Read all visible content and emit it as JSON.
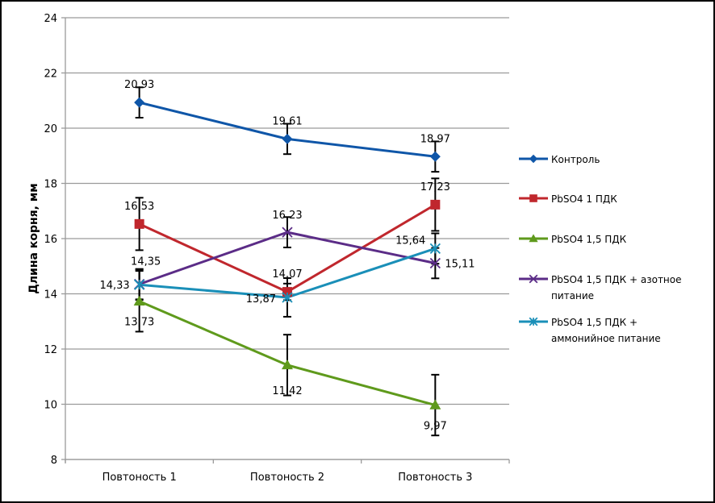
{
  "chart_data": {
    "type": "line",
    "title": "",
    "xlabel": "",
    "ylabel": "Длина корня, мм",
    "ylim": [
      8,
      24
    ],
    "yticks": [
      8,
      10,
      12,
      14,
      16,
      18,
      20,
      22,
      24
    ],
    "ytick_labels": [
      "8",
      "10",
      "12",
      "14",
      "16",
      "18",
      "20",
      "22",
      "24"
    ],
    "grid": true,
    "legend_position": "right",
    "categories": [
      "Повтоность 1",
      "Повтоность 2",
      "Повтоность 3"
    ],
    "series": [
      {
        "name": "Контроль",
        "color": "#0f56a8",
        "marker": "diamond",
        "values": [
          20.93,
          19.61,
          18.97
        ],
        "labels": [
          "20,93",
          "19,61",
          "18,97"
        ],
        "error": [
          0.55,
          0.55,
          0.55
        ]
      },
      {
        "name": "PbSO4 1 ПДК",
        "color": "#c0272d",
        "marker": "square",
        "values": [
          16.53,
          14.07,
          17.23
        ],
        "labels": [
          "16,53",
          "14,07",
          "17,23"
        ],
        "error": [
          0.95,
          0.3,
          0.95
        ]
      },
      {
        "name": "PbSO4 1,5 ПДК",
        "color": "#5f9a1c",
        "marker": "triangle",
        "values": [
          13.73,
          11.42,
          9.97
        ],
        "labels": [
          "13,73",
          "11,42",
          "9,97"
        ],
        "error": [
          1.1,
          1.1,
          1.1
        ]
      },
      {
        "name": "PbSO4 1,5 ПДК + азотное питание",
        "legend_lines": [
          "PbSO4 1,5 ПДК + азотное",
          "питание"
        ],
        "color": "#5b2c87",
        "marker": "x",
        "values": [
          14.35,
          16.23,
          15.11
        ],
        "labels": [
          "14,35",
          "16,23",
          "15,11"
        ],
        "error": [
          0.55,
          0.55,
          0.55
        ]
      },
      {
        "name": "PbSO4 1,5 ПДК + аммонийное питание",
        "legend_lines": [
          "PbSO4 1,5 ПДК +",
          "аммонийное питание"
        ],
        "color": "#1a8fb8",
        "marker": "star",
        "values": [
          14.33,
          13.87,
          15.64
        ],
        "labels": [
          "14,33",
          "13,87",
          "15,64"
        ],
        "error": [
          0.55,
          0.7,
          0.55
        ]
      }
    ]
  }
}
